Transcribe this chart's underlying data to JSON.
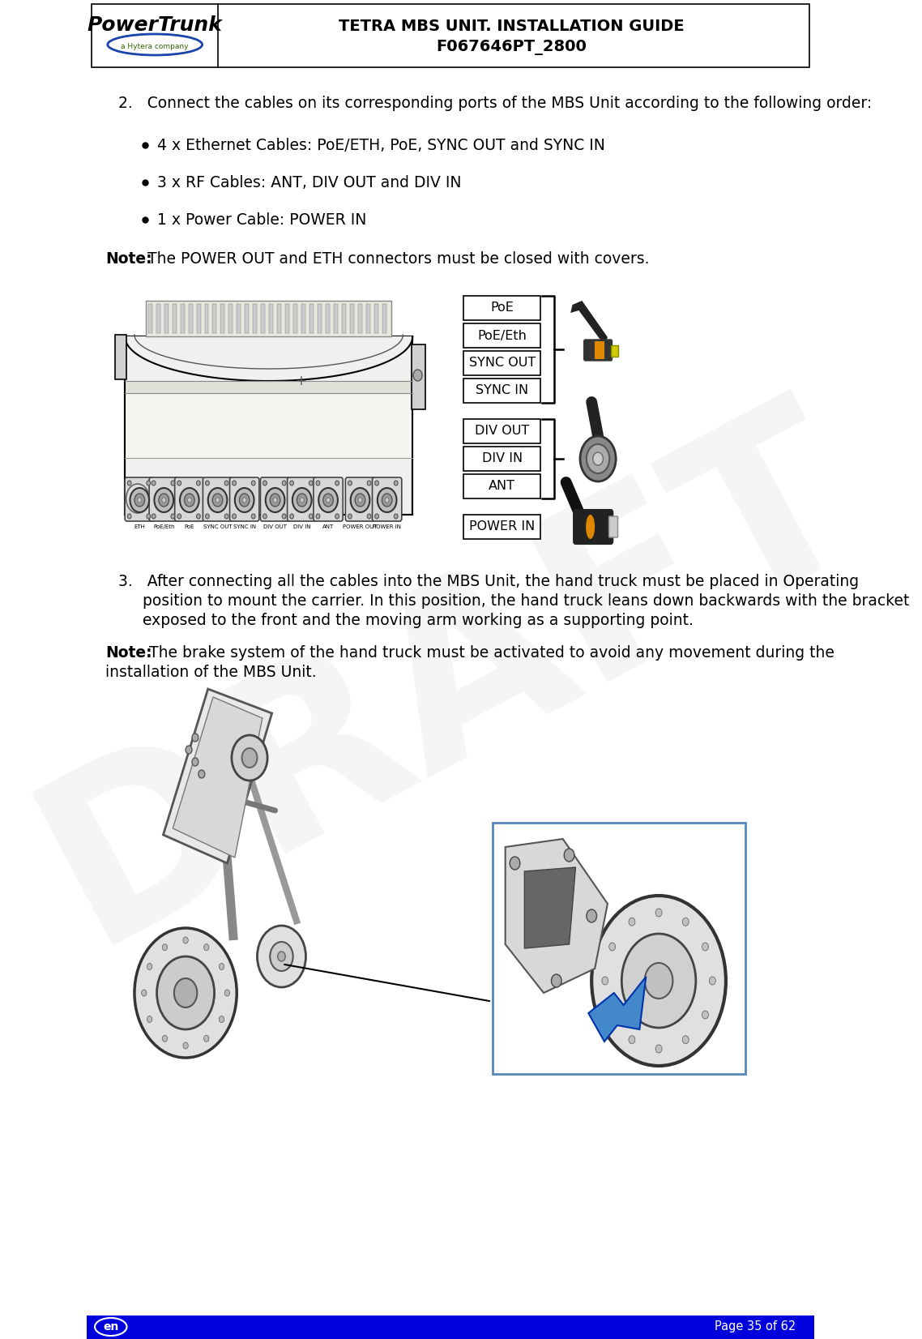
{
  "title_line1": "TETRA MBS UNIT. INSTALLATION GUIDE",
  "title_line2": "F067646PT_2800",
  "footer_right": "Page 35 of 62",
  "step2_text": "2.   Connect the cables on its corresponding ports of the MBS Unit according to the following order:",
  "bullet1": "4 x Ethernet Cables: PoE/ETH, PoE, SYNC OUT and SYNC IN",
  "bullet2": "3 x RF Cables: ANT, DIV OUT and DIV IN",
  "bullet3": "1 x Power Cable: POWER IN",
  "note1_bold": "Note:",
  "note1_text": " The POWER OUT and ETH connectors must be closed with covers.",
  "step3_line1": "3.   After connecting all the cables into the MBS Unit, the hand truck must be placed in Operating",
  "step3_line2": "     position to mount the carrier. In this position, the hand truck leans down backwards with the bracket",
  "step3_line3": "     exposed to the front and the moving arm working as a supporting point.",
  "note2_bold": "Note:",
  "note2_line1": " The brake system of the hand truck must be activated to avoid any movement during the",
  "note2_line2": "installation of the MBS Unit.",
  "eth_group": [
    "PoE",
    "PoE/Eth",
    "SYNC OUT",
    "SYNC IN"
  ],
  "rf_group": [
    "DIV OUT",
    "DIV IN",
    "ANT"
  ],
  "pw_label": "POWER IN",
  "port_labels": [
    "ETH",
    "PoE/Eth",
    "PoE",
    "SYNC OUT",
    "SYNC IN",
    "DIV OUT",
    "DIV IN",
    "ANT",
    "POWER OUT",
    "POWER IN"
  ],
  "watermark": "DRAFT",
  "bg": "#ffffff",
  "footer_bg": "#0000dd",
  "black": "#000000",
  "gray_dark": "#444444",
  "gray_med": "#888888",
  "gray_light": "#cccccc",
  "gray_lighter": "#e8e8e8",
  "orange": "#dd8800",
  "blue_inset": "#5588bb"
}
